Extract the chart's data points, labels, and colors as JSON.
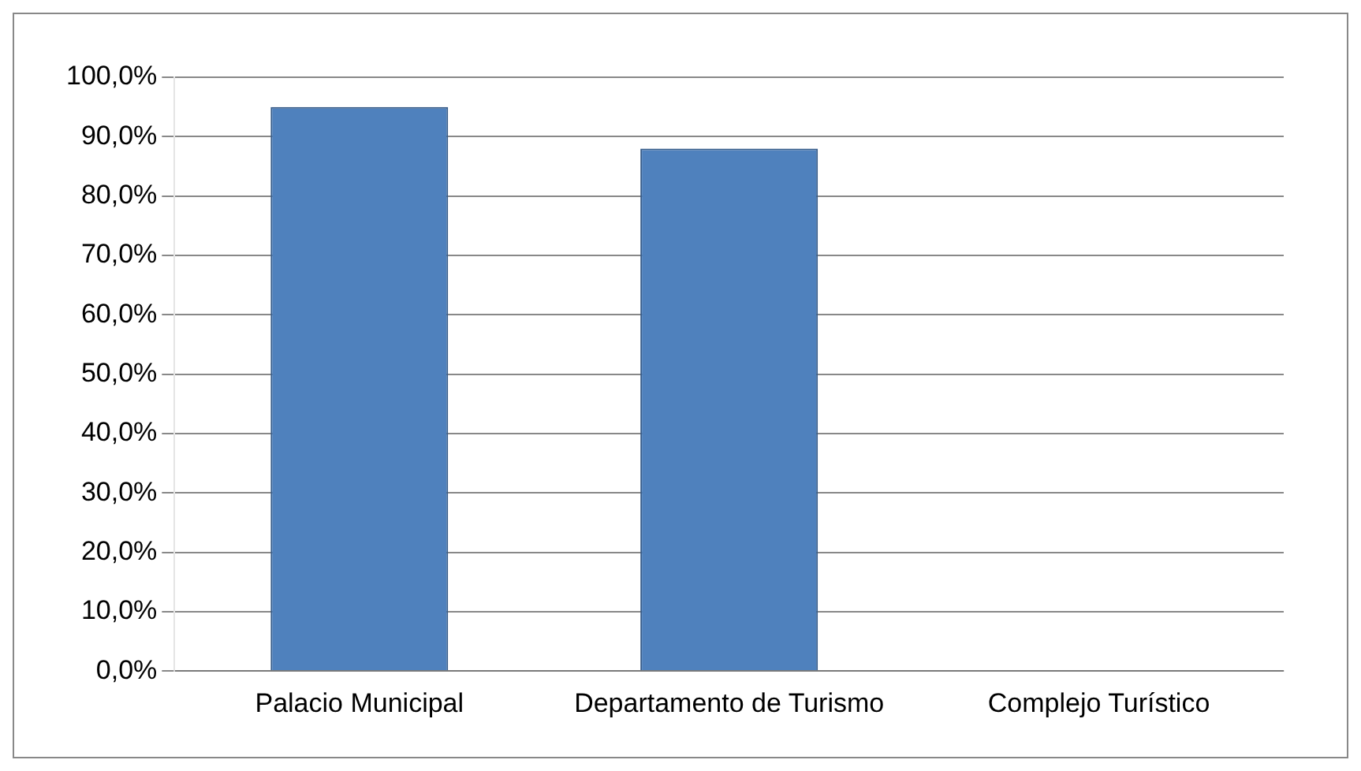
{
  "chart_data": {
    "type": "bar",
    "categories": [
      "Palacio Municipal",
      "Departamento de Turismo",
      "Complejo Turístico"
    ],
    "values": [
      95,
      88,
      0
    ],
    "color": "#4f81bd",
    "ylim": [
      0,
      100
    ],
    "yticks": [
      {
        "value": 0,
        "label": "0,0%"
      },
      {
        "value": 10,
        "label": "10,0%"
      },
      {
        "value": 20,
        "label": "20,0%"
      },
      {
        "value": 30,
        "label": "30,0%"
      },
      {
        "value": 40,
        "label": "40,0%"
      },
      {
        "value": 50,
        "label": "50,0%"
      },
      {
        "value": 60,
        "label": "60,0%"
      },
      {
        "value": 70,
        "label": "70,0%"
      },
      {
        "value": 80,
        "label": "80,0%"
      },
      {
        "value": 90,
        "label": "90,0%"
      },
      {
        "value": 100,
        "label": "100,0%"
      }
    ],
    "grid": "y"
  }
}
